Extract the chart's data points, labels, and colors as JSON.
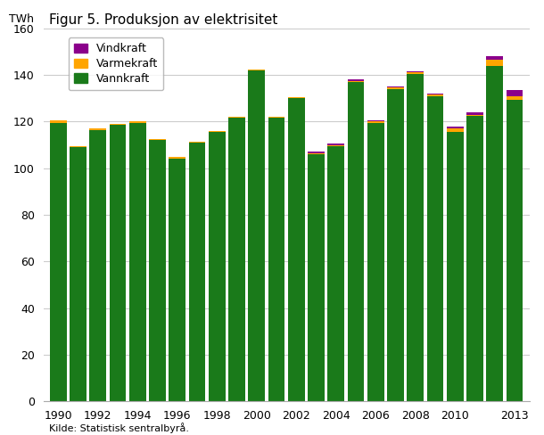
{
  "title": "Figur 5. Produksjon av elektrisitet",
  "ylabel": "TWh",
  "source": "Kilde: Statistisk sentralbyrå.",
  "years": [
    1990,
    1991,
    1992,
    1993,
    1994,
    1995,
    1996,
    1997,
    1998,
    1999,
    2000,
    2001,
    2002,
    2003,
    2004,
    2005,
    2006,
    2007,
    2008,
    2009,
    2010,
    2011,
    2012,
    2013
  ],
  "vannkraft": [
    119.5,
    109.0,
    116.5,
    118.5,
    119.5,
    112.0,
    104.2,
    111.0,
    115.5,
    121.5,
    142.0,
    121.5,
    130.0,
    106.0,
    109.5,
    137.0,
    119.5,
    134.0,
    140.5,
    131.0,
    115.5,
    122.5,
    144.0,
    129.5
  ],
  "varmekraft": [
    1.0,
    0.5,
    0.5,
    0.5,
    0.5,
    0.5,
    0.5,
    0.5,
    0.5,
    0.5,
    0.5,
    0.5,
    0.5,
    0.5,
    0.5,
    0.5,
    0.5,
    0.5,
    0.5,
    0.5,
    1.5,
    0.5,
    2.5,
    1.5
  ],
  "vindkraft": [
    0.0,
    0.0,
    0.0,
    0.0,
    0.0,
    0.0,
    0.0,
    0.0,
    0.0,
    0.0,
    0.0,
    0.0,
    0.0,
    0.5,
    0.5,
    0.5,
    0.5,
    0.5,
    0.5,
    0.5,
    1.0,
    1.0,
    1.5,
    2.5
  ],
  "vannkraft_color": "#1a7a1a",
  "varmekraft_color": "#ffa500",
  "vindkraft_color": "#8b008b",
  "ylim": [
    0,
    160
  ],
  "yticks": [
    0,
    20,
    40,
    60,
    80,
    100,
    120,
    140,
    160
  ],
  "bar_width": 0.85,
  "bg_color": "#ffffff",
  "plot_bg_color": "#ffffff",
  "grid_color": "#cccccc",
  "xtick_labels": [
    "1990",
    "1992",
    "1994",
    "1996",
    "1998",
    "2000",
    "2002",
    "2004",
    "2006",
    "2008",
    "2010",
    "",
    "2013"
  ]
}
